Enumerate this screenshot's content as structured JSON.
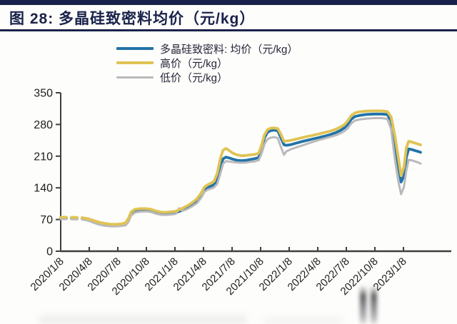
{
  "page": {
    "title": "图 28: 多晶硅致密料均价（元/kg）"
  },
  "colors": {
    "navy": "#19224a",
    "background": "#fdfdfb",
    "axis": "#3f3f3f",
    "tick_label": "#1c1c1c",
    "legend_text": "#26263a",
    "avg_line": "#2173a7",
    "high_line": "#e0c355",
    "low_line": "#b9b9bd"
  },
  "chart_data": {
    "type": "line",
    "title": "多晶硅致密料均价（元/kg）",
    "xlabel": "",
    "ylabel": "",
    "ylim": [
      0,
      350
    ],
    "y_ticks": [
      0,
      70,
      140,
      210,
      280,
      350
    ],
    "x_tick_labels": [
      "2020/1/8",
      "2020/4/8",
      "2020/7/8",
      "2020/10/8",
      "2021/1/8",
      "2021/4/8",
      "2021/7/8",
      "2021/10/8",
      "2022/1/8",
      "2022/4/8",
      "2022/7/8",
      "2022/10/8",
      "2023/1/8"
    ],
    "grid": false,
    "legend_position": "top",
    "series": [
      {
        "name": "多晶硅致密料: 均价（元/kg）",
        "key": "avg",
        "color": "#2173a7",
        "width": 3.8
      },
      {
        "name": "高价（元/kg）",
        "key": "high",
        "color": "#e0c355",
        "width": 3.8
      },
      {
        "name": "低价（元/kg）",
        "key": "low",
        "color": "#b9b9bd",
        "width": 3.0
      }
    ],
    "points_format": "[months_since_2020_01_08, avg, high, low]",
    "dashed_until_month": 2.3,
    "points": [
      [
        0.0,
        73,
        75,
        71
      ],
      [
        0.8,
        73,
        75,
        71
      ],
      [
        1.6,
        72.5,
        74.5,
        70.5
      ],
      [
        2.3,
        72,
        74,
        70
      ],
      [
        2.9,
        69.5,
        71.5,
        67.5
      ],
      [
        3.5,
        65,
        67.5,
        62.5
      ],
      [
        4.1,
        61,
        63.5,
        58.5
      ],
      [
        4.7,
        58.5,
        61,
        56
      ],
      [
        5.3,
        57,
        59.5,
        55
      ],
      [
        5.9,
        57,
        59.5,
        55
      ],
      [
        6.4,
        58,
        60.5,
        56
      ],
      [
        6.8,
        59.5,
        62.5,
        57
      ],
      [
        7.1,
        68,
        72,
        64
      ],
      [
        7.4,
        83,
        87,
        79
      ],
      [
        7.8,
        89,
        92.5,
        85.5
      ],
      [
        8.4,
        91,
        94,
        87.5
      ],
      [
        9.0,
        91,
        94,
        88
      ],
      [
        9.5,
        89.5,
        92.5,
        86.5
      ],
      [
        10.0,
        86,
        89,
        83
      ],
      [
        10.5,
        83.5,
        86.5,
        80.5
      ],
      [
        11.0,
        83,
        86,
        80
      ],
      [
        11.6,
        84,
        87,
        81
      ],
      [
        12.1,
        85.5,
        88.5,
        82.5
      ],
      [
        12.45,
        88,
        91.5,
        95
      ],
      [
        12.8,
        91,
        95,
        89
      ],
      [
        13.3,
        96,
        100.5,
        93
      ],
      [
        13.8,
        102,
        107,
        99
      ],
      [
        14.3,
        110,
        115.5,
        106
      ],
      [
        14.75,
        123,
        128.5,
        118
      ],
      [
        15.1,
        136,
        141.5,
        131
      ],
      [
        15.45,
        141,
        147,
        136
      ],
      [
        15.8,
        144,
        150.5,
        138.5
      ],
      [
        16.1,
        147,
        154.5,
        141
      ],
      [
        16.45,
        158,
        172,
        149
      ],
      [
        16.75,
        183,
        203,
        170
      ],
      [
        17.05,
        204,
        223,
        193
      ],
      [
        17.35,
        208,
        227,
        199
      ],
      [
        17.7,
        206,
        222.5,
        198
      ],
      [
        18.05,
        203.5,
        217,
        197
      ],
      [
        18.5,
        201,
        213,
        196
      ],
      [
        19.0,
        200,
        211,
        195.5
      ],
      [
        19.5,
        201,
        211.5,
        196
      ],
      [
        20.0,
        203,
        213,
        197.5
      ],
      [
        20.4,
        204.5,
        214,
        198.5
      ],
      [
        20.8,
        207,
        216.5,
        201
      ],
      [
        21.1,
        226,
        234,
        216
      ],
      [
        21.4,
        250,
        257,
        236
      ],
      [
        21.7,
        262,
        268,
        247
      ],
      [
        22.0,
        266,
        271.5,
        250.5
      ],
      [
        22.4,
        267.5,
        272.5,
        252
      ],
      [
        22.8,
        266,
        271,
        250
      ],
      [
        23.1,
        252,
        259.5,
        232
      ],
      [
        23.45,
        235,
        243,
        213
      ],
      [
        23.7,
        234,
        243.5,
        220.5
      ],
      [
        24.1,
        235,
        244.5,
        224.5
      ],
      [
        24.7,
        238.5,
        247.5,
        229
      ],
      [
        25.3,
        242,
        250.5,
        233
      ],
      [
        25.9,
        245,
        253.5,
        237.5
      ],
      [
        26.5,
        248,
        256,
        241.5
      ],
      [
        27.1,
        251,
        259,
        245.5
      ],
      [
        27.7,
        254,
        262,
        249
      ],
      [
        28.3,
        257.5,
        265,
        252.5
      ],
      [
        28.9,
        262,
        269.5,
        256
      ],
      [
        29.4,
        267,
        274.5,
        260.5
      ],
      [
        29.8,
        272.5,
        279.5,
        265.5
      ],
      [
        30.15,
        280,
        288,
        271.5
      ],
      [
        30.5,
        291,
        299,
        282
      ],
      [
        30.9,
        297.5,
        305.5,
        288.5
      ],
      [
        31.4,
        300,
        308,
        291
      ],
      [
        32.1,
        302,
        309.5,
        293
      ],
      [
        32.9,
        303,
        310,
        294
      ],
      [
        33.7,
        303,
        310,
        294
      ],
      [
        34.3,
        302,
        308.5,
        292.5
      ],
      [
        34.7,
        288,
        297,
        270
      ],
      [
        35.1,
        240,
        255,
        203
      ],
      [
        35.45,
        190,
        208,
        155
      ],
      [
        35.75,
        153,
        167,
        126
      ],
      [
        36.05,
        166,
        186,
        142
      ],
      [
        36.3,
        207,
        228,
        178
      ],
      [
        36.55,
        226,
        243,
        202
      ],
      [
        36.9,
        224.5,
        241,
        200.5
      ],
      [
        37.2,
        222.5,
        239,
        198.5
      ],
      [
        37.5,
        220.5,
        237,
        196.5
      ],
      [
        37.8,
        218.5,
        235,
        193.5
      ]
    ]
  }
}
